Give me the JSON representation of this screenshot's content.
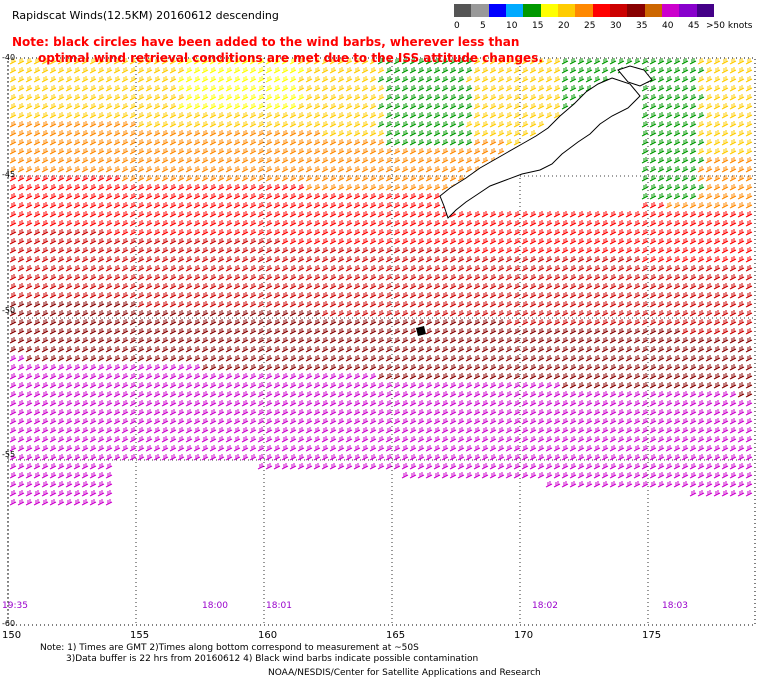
{
  "header": {
    "title": "Rapidscat Winds(12.5KM) 20160612 descending"
  },
  "note": {
    "line1": "Note: black circles have been added to the wind barbs, wherever less than",
    "line2": "optimal wind retrieval conditions are met due to the ISS attitude changes."
  },
  "colorbar": {
    "labels": [
      "0",
      "5",
      "10",
      "15",
      "20",
      "25",
      "30",
      "35",
      "40",
      "45",
      ">50 knots"
    ],
    "colors": [
      "#555555",
      "#999999",
      "#0000ff",
      "#00aaff",
      "#009900",
      "#ffff00",
      "#ffcc00",
      "#ff8800",
      "#ff0000",
      "#cc0000",
      "#880000",
      "#cc6600",
      "#cc00cc",
      "#8800cc",
      "#440088"
    ]
  },
  "map": {
    "longitude_labels": [
      "150",
      "155",
      "160",
      "165",
      "170",
      "175"
    ],
    "latitude_labels": [
      "-40",
      "-45",
      "-50",
      "-55",
      "-60"
    ],
    "time_labels": [
      "19:35",
      "18:00",
      "18:01",
      "18:02",
      "18:03"
    ]
  },
  "footer": {
    "line1": "Note: 1) Times are GMT 2)Times along bottom correspond to measurement at ~50S",
    "line2": "3)Data buffer is 22 hrs from 20160612 4) Black wind barbs indicate possible contamination",
    "line3": "NOAA/NESDIS/Center for Satellite Applications and Research"
  }
}
